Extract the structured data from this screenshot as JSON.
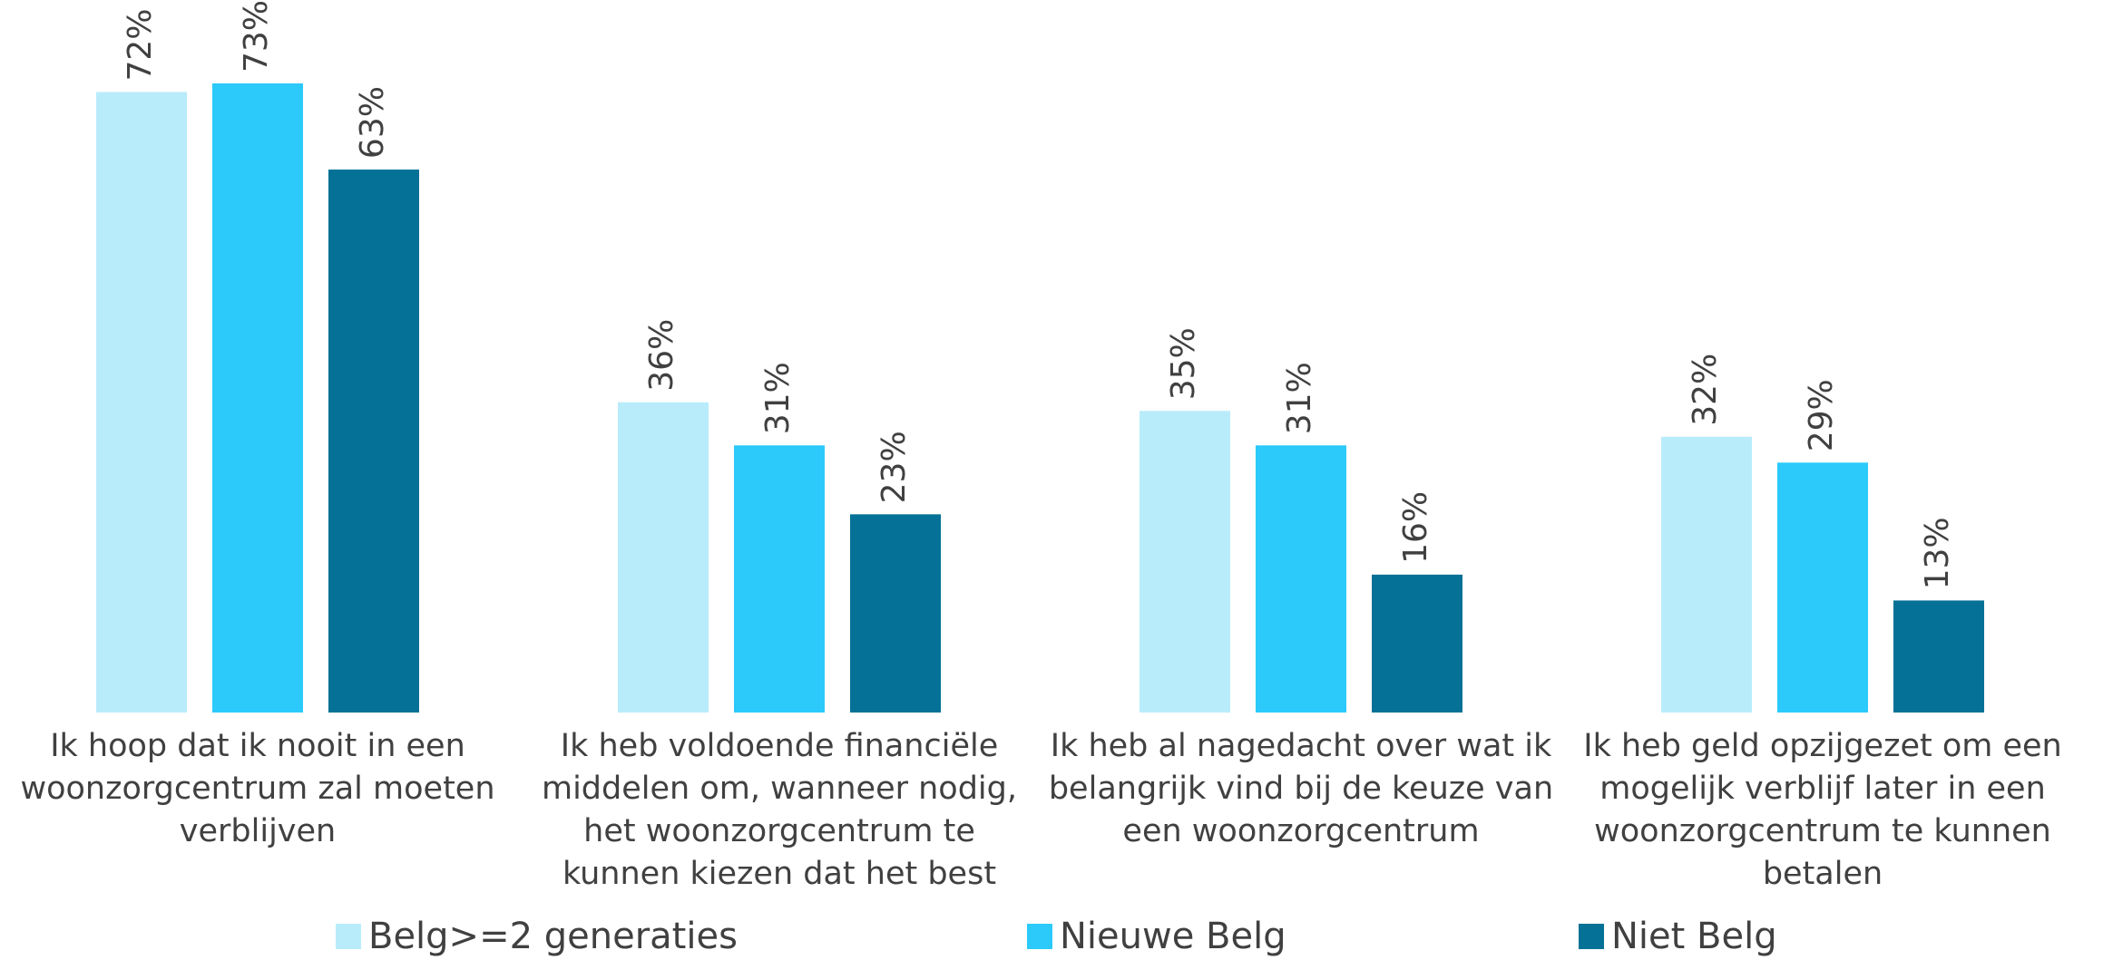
{
  "chart_data": {
    "type": "bar",
    "categories": [
      "Ik hoop dat ik nooit in een woonzorgcentrum zal moeten verblijven",
      "Ik heb voldoende financiële middelen om, wanneer nodig, het woonzorgcentrum te kunnen kiezen dat het best",
      "Ik heb al nagedacht over wat ik belangrijk vind bij de keuze van een woonzorgcentrum",
      "Ik heb geld opzijgezet om een mogelijk verblijf later in een woonzorgcentrum te kunnen betalen"
    ],
    "series": [
      {
        "name": "Belg>=2 generaties",
        "color": "#b9ecfb",
        "values": [
          72,
          36,
          35,
          32
        ],
        "value_labels": [
          "72%",
          "36%",
          "35%",
          "32%"
        ]
      },
      {
        "name": "Nieuwe Belg",
        "color": "#2ccafa",
        "values": [
          73,
          31,
          31,
          29
        ],
        "value_labels": [
          "73%",
          "31%",
          "31%",
          "29%"
        ]
      },
      {
        "name": "Niet Belg",
        "color": "#057196",
        "values": [
          63,
          23,
          16,
          13
        ],
        "value_labels": [
          "63%",
          "23%",
          "16%",
          "13%"
        ]
      }
    ],
    "legend": "bottom"
  }
}
